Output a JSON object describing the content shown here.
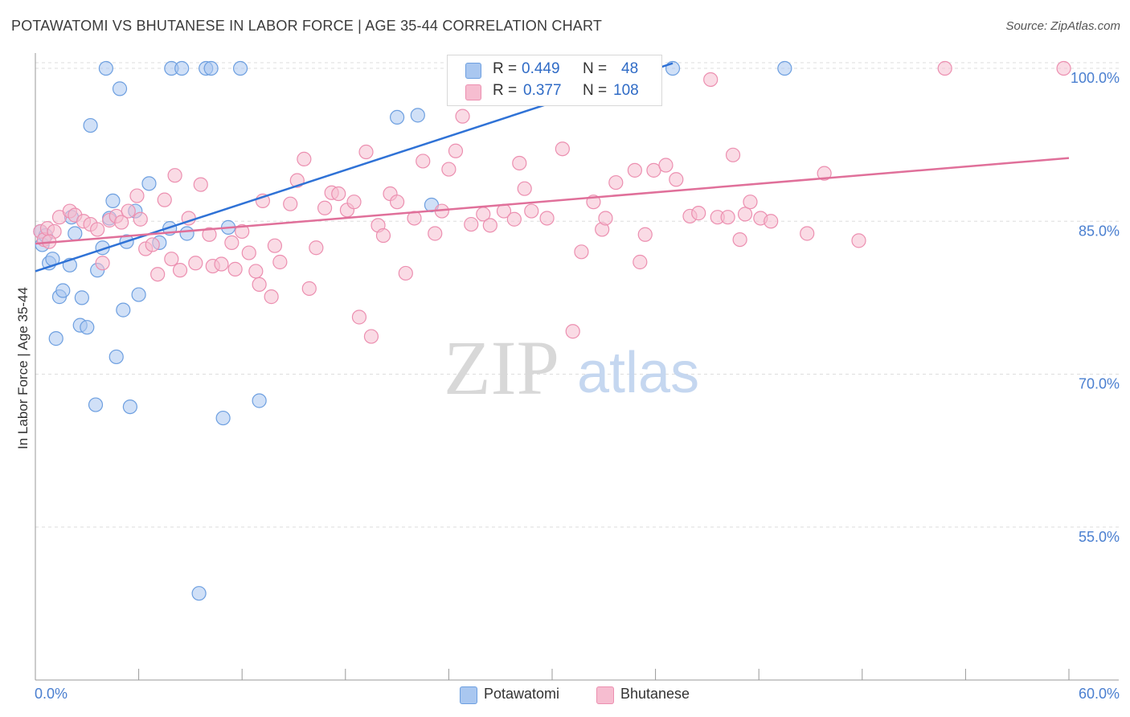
{
  "title": "POTAWATOMI VS BHUTANESE IN LABOR FORCE | AGE 35-44 CORRELATION CHART",
  "source": "Source: ZipAtlas.com",
  "watermark": {
    "zip": "ZIP",
    "atlas": "atlas"
  },
  "stats": [
    {
      "r_label": "R =",
      "r_value": "0.449",
      "n_label": "N =",
      "n_value": "48"
    },
    {
      "r_label": "R =",
      "r_value": "0.377",
      "n_label": "N =",
      "n_value": "108"
    }
  ],
  "legend": [
    {
      "name": "Potawatomi"
    },
    {
      "name": "Bhutanese"
    }
  ],
  "colors": {
    "potawatomi_fill": "#a9c7f0",
    "potawatomi_stroke": "#6d9fe0",
    "potawatomi_line": "#2f72d6",
    "bhutanese_fill": "#f6bdd0",
    "bhutanese_stroke": "#ec8fb0",
    "bhutanese_line": "#e0709a",
    "tick_label": "#4a7fd0",
    "grid": "#dddddd"
  },
  "chart_data": {
    "type": "scatter",
    "title": "POTAWATOMI VS BHUTANESE IN LABOR FORCE | AGE 35-44 CORRELATION CHART",
    "xlabel": "",
    "ylabel": "In Labor Force | Age 35-44",
    "xlim": [
      0,
      60
    ],
    "ylim": [
      40,
      101.5
    ],
    "x_tick_labels": [
      "0.0%",
      "60.0%"
    ],
    "y_ticks": [
      55,
      70,
      85,
      100
    ],
    "y_tick_labels": [
      "55.0%",
      "70.0%",
      "85.0%",
      "100.0%"
    ],
    "grid": true,
    "legend_position": "bottom-center",
    "series": [
      {
        "name": "Potawatomi",
        "trend": {
          "x": [
            0,
            37
          ],
          "y": [
            80.1,
            100.5
          ]
        },
        "points": [
          [
            0.3,
            84.0
          ],
          [
            0.4,
            82.7
          ],
          [
            0.6,
            83.6
          ],
          [
            0.8,
            80.9
          ],
          [
            1.0,
            81.3
          ],
          [
            1.2,
            73.5
          ],
          [
            1.4,
            77.6
          ],
          [
            1.6,
            78.2
          ],
          [
            2.0,
            80.7
          ],
          [
            2.1,
            85.4
          ],
          [
            2.3,
            83.8
          ],
          [
            2.6,
            74.8
          ],
          [
            2.7,
            77.5
          ],
          [
            3.0,
            74.6
          ],
          [
            3.2,
            94.4
          ],
          [
            3.5,
            67.0
          ],
          [
            3.6,
            80.2
          ],
          [
            3.9,
            82.4
          ],
          [
            4.1,
            100.0
          ],
          [
            4.3,
            85.3
          ],
          [
            4.5,
            87.0
          ],
          [
            4.7,
            71.7
          ],
          [
            4.9,
            98.0
          ],
          [
            5.1,
            76.3
          ],
          [
            5.3,
            83.0
          ],
          [
            5.5,
            66.8
          ],
          [
            5.8,
            86.0
          ],
          [
            6.0,
            77.8
          ],
          [
            6.6,
            88.7
          ],
          [
            7.2,
            82.9
          ],
          [
            7.8,
            84.3
          ],
          [
            7.9,
            100.0
          ],
          [
            8.5,
            100.0
          ],
          [
            8.8,
            83.8
          ],
          [
            9.5,
            48.5
          ],
          [
            9.9,
            100.0
          ],
          [
            10.2,
            100.0
          ],
          [
            10.9,
            65.7
          ],
          [
            11.2,
            84.4
          ],
          [
            11.9,
            100.0
          ],
          [
            13.0,
            67.4
          ],
          [
            21.0,
            95.2
          ],
          [
            22.2,
            95.4
          ],
          [
            23.0,
            86.6
          ],
          [
            33.0,
            100.0
          ],
          [
            37.0,
            100.0
          ],
          [
            43.5,
            100.0
          ]
        ]
      },
      {
        "name": "Bhutanese",
        "trend": {
          "x": [
            0,
            60
          ],
          "y": [
            82.8,
            91.2
          ]
        },
        "points": [
          [
            0.3,
            84.0
          ],
          [
            0.5,
            83.2
          ],
          [
            0.7,
            84.3
          ],
          [
            1.1,
            84.0
          ],
          [
            1.4,
            85.4
          ],
          [
            2.0,
            86.0
          ],
          [
            2.3,
            85.6
          ],
          [
            2.8,
            85.0
          ],
          [
            3.2,
            84.7
          ],
          [
            3.6,
            84.2
          ],
          [
            3.9,
            80.9
          ],
          [
            4.3,
            85.1
          ],
          [
            4.7,
            85.5
          ],
          [
            5.0,
            84.9
          ],
          [
            5.4,
            86.0
          ],
          [
            5.9,
            87.5
          ],
          [
            6.1,
            85.2
          ],
          [
            6.4,
            82.3
          ],
          [
            6.8,
            82.7
          ],
          [
            7.1,
            79.8
          ],
          [
            7.5,
            87.1
          ],
          [
            7.9,
            81.3
          ],
          [
            8.1,
            89.5
          ],
          [
            8.4,
            80.2
          ],
          [
            8.9,
            85.3
          ],
          [
            9.3,
            80.9
          ],
          [
            9.6,
            88.6
          ],
          [
            10.1,
            83.7
          ],
          [
            10.3,
            80.6
          ],
          [
            10.8,
            80.8
          ],
          [
            11.4,
            82.9
          ],
          [
            11.6,
            80.3
          ],
          [
            12.0,
            84.0
          ],
          [
            12.4,
            81.9
          ],
          [
            12.8,
            80.1
          ],
          [
            13.0,
            78.8
          ],
          [
            13.2,
            87.0
          ],
          [
            13.7,
            77.6
          ],
          [
            13.9,
            82.6
          ],
          [
            14.2,
            81.0
          ],
          [
            14.8,
            86.7
          ],
          [
            15.2,
            89.0
          ],
          [
            15.6,
            91.1
          ],
          [
            15.9,
            78.4
          ],
          [
            16.3,
            82.4
          ],
          [
            16.8,
            86.3
          ],
          [
            17.2,
            87.8
          ],
          [
            17.6,
            87.7
          ],
          [
            18.1,
            86.1
          ],
          [
            18.5,
            86.9
          ],
          [
            18.8,
            75.6
          ],
          [
            19.2,
            91.8
          ],
          [
            19.5,
            73.7
          ],
          [
            19.9,
            84.6
          ],
          [
            20.2,
            83.6
          ],
          [
            20.6,
            87.7
          ],
          [
            21.0,
            86.9
          ],
          [
            21.5,
            79.9
          ],
          [
            22.0,
            85.3
          ],
          [
            22.5,
            90.9
          ],
          [
            23.2,
            83.8
          ],
          [
            23.6,
            86.0
          ],
          [
            24.0,
            90.1
          ],
          [
            24.4,
            91.9
          ],
          [
            24.8,
            95.3
          ],
          [
            25.3,
            84.7
          ],
          [
            26.0,
            85.7
          ],
          [
            26.4,
            84.6
          ],
          [
            27.2,
            86.0
          ],
          [
            27.8,
            85.2
          ],
          [
            28.1,
            90.7
          ],
          [
            28.4,
            88.2
          ],
          [
            28.8,
            86.0
          ],
          [
            29.7,
            85.3
          ],
          [
            30.6,
            92.1
          ],
          [
            31.2,
            74.2
          ],
          [
            31.7,
            82.0
          ],
          [
            32.4,
            86.9
          ],
          [
            32.9,
            84.2
          ],
          [
            33.1,
            85.3
          ],
          [
            33.7,
            88.8
          ],
          [
            34.8,
            90.0
          ],
          [
            35.1,
            81.0
          ],
          [
            35.4,
            83.7
          ],
          [
            35.9,
            90.0
          ],
          [
            36.6,
            90.5
          ],
          [
            37.2,
            89.1
          ],
          [
            38.0,
            85.5
          ],
          [
            38.5,
            85.8
          ],
          [
            39.2,
            98.9
          ],
          [
            39.6,
            85.4
          ],
          [
            40.2,
            85.4
          ],
          [
            40.5,
            91.5
          ],
          [
            40.9,
            83.2
          ],
          [
            41.2,
            85.7
          ],
          [
            41.5,
            86.9
          ],
          [
            42.1,
            85.3
          ],
          [
            42.7,
            85.0
          ],
          [
            44.8,
            83.8
          ],
          [
            45.8,
            89.7
          ],
          [
            47.8,
            83.1
          ],
          [
            52.8,
            100.0
          ],
          [
            59.7,
            100.0
          ],
          [
            0.8,
            83.0
          ]
        ]
      }
    ]
  }
}
